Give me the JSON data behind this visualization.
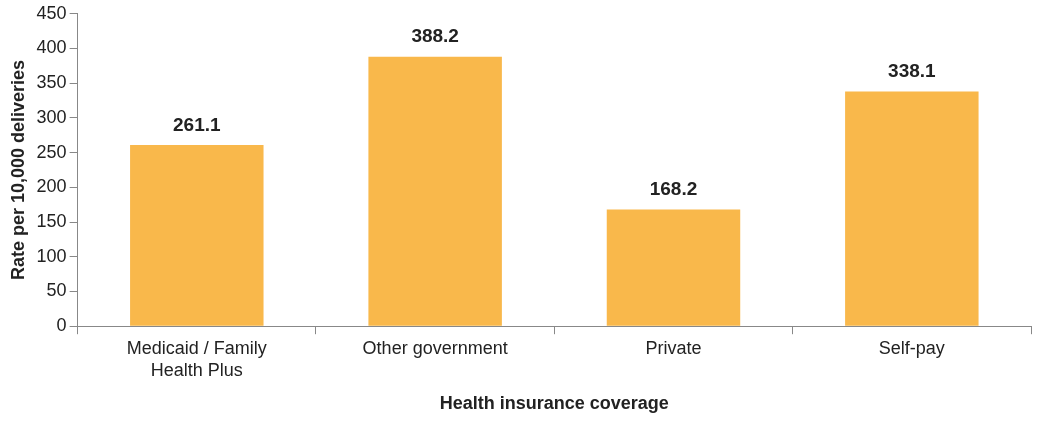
{
  "chart_data": {
    "type": "bar",
    "xlabel": "Health insurance coverage",
    "ylabel": "Rate per 10,000 deliveries",
    "categories": [
      "Medicaid / Family Health Plus",
      "Other government",
      "Private",
      "Self-pay"
    ],
    "values": [
      261.1,
      388.2,
      168.2,
      338.1
    ],
    "color": "#f9b84b",
    "ylim": [
      0,
      450
    ],
    "yticks": [
      0,
      50,
      100,
      150,
      200,
      250,
      300,
      350,
      400,
      450
    ],
    "grid": false,
    "legend": false,
    "data_labels": true
  }
}
